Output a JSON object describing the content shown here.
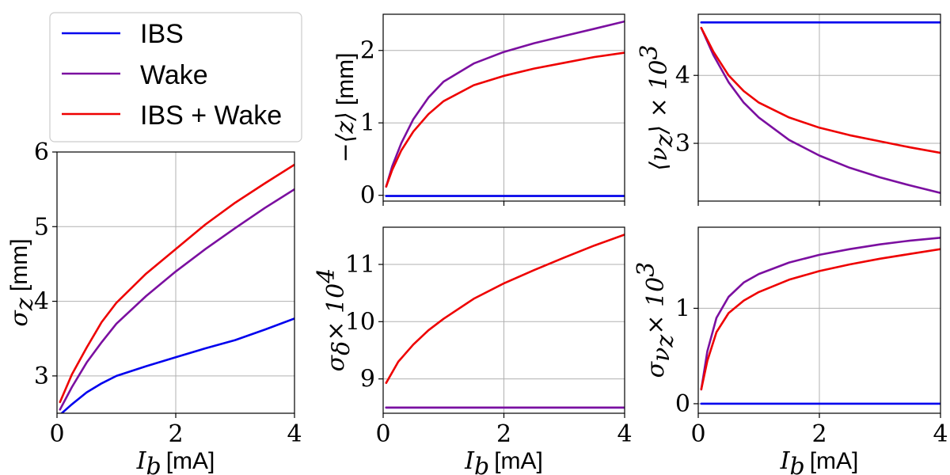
{
  "legend": {
    "entries": [
      {
        "label": "IBS",
        "color": "#0000ee"
      },
      {
        "label": "Wake",
        "color": "#7b0fa0"
      },
      {
        "label": "IBS + Wake",
        "color": "#ee0000"
      }
    ]
  },
  "chart_data": [
    {
      "id": "sigma_z",
      "type": "line",
      "title": "",
      "ylabel_math": "σ",
      "ylabel_sub": "z",
      "ylabel_unit": "[mm]",
      "xlabel_math": "I",
      "xlabel_sub": "b",
      "xlabel_unit": "[mA]",
      "xlim": [
        0,
        4
      ],
      "ylim": [
        2.5,
        6
      ],
      "xticks": [
        0,
        2,
        4
      ],
      "yticks": [
        3,
        4,
        5,
        6
      ],
      "show_xticklabels": true,
      "grid": true,
      "series": [
        {
          "name": "IBS",
          "color": "#0000ee",
          "x": [
            0.05,
            0.25,
            0.5,
            0.75,
            1.0,
            1.5,
            2.0,
            2.5,
            3.0,
            3.5,
            4.0
          ],
          "y": [
            2.48,
            2.62,
            2.78,
            2.9,
            3.0,
            3.13,
            3.25,
            3.37,
            3.48,
            3.62,
            3.77
          ]
        },
        {
          "name": "Wake",
          "color": "#7b0fa0",
          "x": [
            0.05,
            0.25,
            0.5,
            0.75,
            1.0,
            1.5,
            2.0,
            2.5,
            3.0,
            3.5,
            4.0
          ],
          "y": [
            2.55,
            2.85,
            3.18,
            3.45,
            3.7,
            4.07,
            4.4,
            4.7,
            4.98,
            5.25,
            5.5
          ]
        },
        {
          "name": "IBS + Wake",
          "color": "#ee0000",
          "x": [
            0.05,
            0.25,
            0.5,
            0.75,
            1.0,
            1.5,
            2.0,
            2.5,
            3.0,
            3.5,
            4.0
          ],
          "y": [
            2.65,
            3.02,
            3.38,
            3.72,
            3.98,
            4.37,
            4.7,
            5.03,
            5.32,
            5.58,
            5.83
          ]
        }
      ]
    },
    {
      "id": "mean_z",
      "type": "line",
      "title": "",
      "ylabel_math": "−⟨z⟩",
      "ylabel_unit": "[mm]",
      "xlim": [
        0,
        4
      ],
      "ylim": [
        -0.08,
        2.5
      ],
      "xticks": [
        0,
        2,
        4
      ],
      "yticks": [
        0,
        1,
        2
      ],
      "show_xticklabels": false,
      "grid": true,
      "series": [
        {
          "name": "IBS",
          "color": "#0000ee",
          "x": [
            0.05,
            4.0
          ],
          "y": [
            -0.01,
            -0.01
          ]
        },
        {
          "name": "Wake",
          "color": "#7b0fa0",
          "x": [
            0.05,
            0.15,
            0.3,
            0.5,
            0.75,
            1.0,
            1.5,
            2.0,
            2.5,
            3.0,
            3.5,
            4.0
          ],
          "y": [
            0.12,
            0.4,
            0.72,
            1.05,
            1.35,
            1.57,
            1.82,
            1.98,
            2.1,
            2.2,
            2.3,
            2.4
          ]
        },
        {
          "name": "IBS + Wake",
          "color": "#ee0000",
          "x": [
            0.05,
            0.15,
            0.3,
            0.5,
            0.75,
            1.0,
            1.5,
            2.0,
            2.5,
            3.0,
            3.5,
            4.0
          ],
          "y": [
            0.12,
            0.35,
            0.62,
            0.88,
            1.12,
            1.3,
            1.52,
            1.65,
            1.75,
            1.83,
            1.91,
            1.97
          ]
        }
      ]
    },
    {
      "id": "mean_nu",
      "type": "line",
      "title": "",
      "ylabel_math": "⟨ν",
      "ylabel_sub": "z",
      "ylabel_tail": "⟩ × 10",
      "ylabel_sup": "3",
      "xlim": [
        0,
        4
      ],
      "ylim": [
        2.15,
        4.9
      ],
      "xticks": [
        0,
        2,
        4
      ],
      "yticks": [
        3,
        4
      ],
      "show_xticklabels": false,
      "grid": true,
      "series": [
        {
          "name": "IBS",
          "color": "#0000ee",
          "x": [
            0.05,
            4.0
          ],
          "y": [
            4.78,
            4.78
          ]
        },
        {
          "name": "Wake",
          "color": "#7b0fa0",
          "x": [
            0.05,
            0.25,
            0.5,
            0.75,
            1.0,
            1.5,
            2.0,
            2.5,
            3.0,
            3.5,
            4.0
          ],
          "y": [
            4.7,
            4.3,
            3.9,
            3.6,
            3.38,
            3.05,
            2.82,
            2.64,
            2.5,
            2.38,
            2.27
          ]
        },
        {
          "name": "IBS + Wake",
          "color": "#ee0000",
          "x": [
            0.05,
            0.25,
            0.5,
            0.75,
            1.0,
            1.5,
            2.0,
            2.5,
            3.0,
            3.5,
            4.0
          ],
          "y": [
            4.7,
            4.35,
            4.0,
            3.77,
            3.6,
            3.38,
            3.23,
            3.12,
            3.03,
            2.94,
            2.86
          ]
        }
      ]
    },
    {
      "id": "sigma_delta",
      "type": "line",
      "title": "",
      "ylabel_math": "σ",
      "ylabel_sub": "δ",
      "ylabel_tail": " × 10",
      "ylabel_sup": "4",
      "xlabel_math": "I",
      "xlabel_sub": "b",
      "xlabel_unit": "[mA]",
      "xlim": [
        0,
        4
      ],
      "ylim": [
        8.4,
        11.65
      ],
      "xticks": [
        0,
        2,
        4
      ],
      "yticks": [
        9,
        10,
        11
      ],
      "show_xticklabels": true,
      "grid": true,
      "series": [
        {
          "name": "IBS",
          "color": "#0000ee",
          "x": [
            0.05,
            4.0
          ],
          "y": [
            8.5,
            8.5
          ]
        },
        {
          "name": "Wake",
          "color": "#7b0fa0",
          "x": [
            0.05,
            4.0
          ],
          "y": [
            8.5,
            8.5
          ]
        },
        {
          "name": "IBS + Wake",
          "color": "#ee0000",
          "x": [
            0.05,
            0.25,
            0.5,
            0.75,
            1.0,
            1.5,
            2.0,
            2.5,
            3.0,
            3.5,
            4.0
          ],
          "y": [
            8.93,
            9.3,
            9.6,
            9.85,
            10.05,
            10.4,
            10.67,
            10.9,
            11.12,
            11.33,
            11.52
          ]
        }
      ]
    },
    {
      "id": "sigma_nu",
      "type": "line",
      "title": "",
      "ylabel_math": "σ",
      "ylabel_sub": "ν",
      "ylabel_subsub": "z",
      "ylabel_tail": " × 10",
      "ylabel_sup": "3",
      "xlabel_math": "I",
      "xlabel_sub": "b",
      "xlabel_unit": "[mA]",
      "xlim": [
        0,
        4
      ],
      "ylim": [
        -0.1,
        1.85
      ],
      "xticks": [
        0,
        2,
        4
      ],
      "yticks": [
        0,
        1
      ],
      "show_xticklabels": true,
      "grid": true,
      "series": [
        {
          "name": "IBS",
          "color": "#0000ee",
          "x": [
            0.05,
            4.0
          ],
          "y": [
            0.0,
            0.0
          ]
        },
        {
          "name": "Wake",
          "color": "#7b0fa0",
          "x": [
            0.05,
            0.15,
            0.3,
            0.5,
            0.75,
            1.0,
            1.5,
            2.0,
            2.5,
            3.0,
            3.5,
            4.0
          ],
          "y": [
            0.15,
            0.55,
            0.9,
            1.12,
            1.27,
            1.36,
            1.48,
            1.56,
            1.62,
            1.67,
            1.71,
            1.74
          ]
        },
        {
          "name": "IBS + Wake",
          "color": "#ee0000",
          "x": [
            0.05,
            0.15,
            0.3,
            0.5,
            0.75,
            1.0,
            1.5,
            2.0,
            2.5,
            3.0,
            3.5,
            4.0
          ],
          "y": [
            0.15,
            0.45,
            0.75,
            0.95,
            1.08,
            1.17,
            1.3,
            1.39,
            1.46,
            1.52,
            1.57,
            1.62
          ]
        }
      ]
    }
  ]
}
